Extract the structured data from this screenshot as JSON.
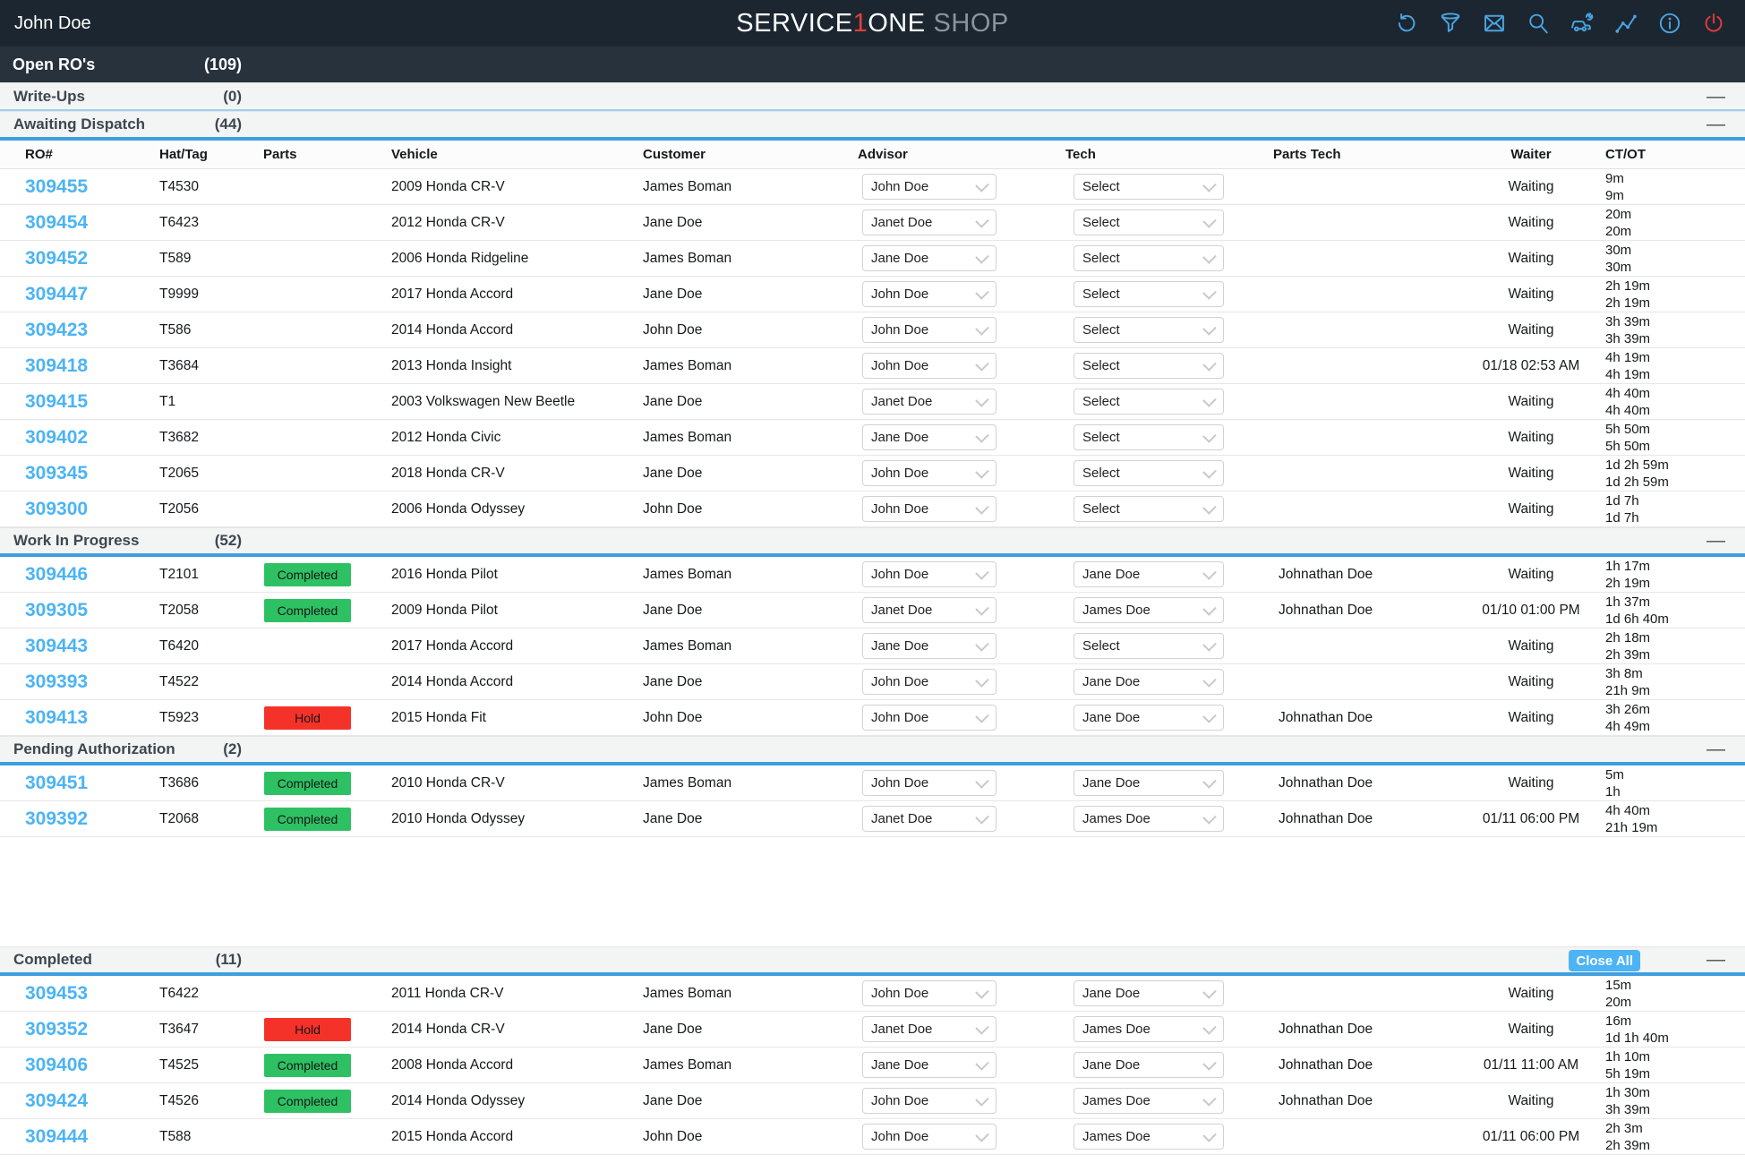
{
  "navbar": {
    "user": "John Doe",
    "logo": {
      "service": "SERVICE",
      "one_accent": "1",
      "one": "ONE",
      "shop": "SHOP"
    },
    "icons": [
      {
        "name": "refresh-icon"
      },
      {
        "name": "filter-icon"
      },
      {
        "name": "mail-icon"
      },
      {
        "name": "search-icon"
      },
      {
        "name": "car-service-icon"
      },
      {
        "name": "activity-icon"
      },
      {
        "name": "info-icon"
      },
      {
        "name": "power-icon"
      }
    ]
  },
  "summary": {
    "title": "Open RO's",
    "count": "(109)"
  },
  "columns": [
    "RO#",
    "Hat/Tag",
    "Parts",
    "Vehicle",
    "Customer",
    "Advisor",
    "Tech",
    "Parts Tech",
    "Waiter",
    "CT/OT"
  ],
  "colors": {
    "accent_blue": "#3e9edf",
    "link_blue": "#4cb4f4",
    "completed_green": "#2ec164",
    "hold_red": "#f5322a",
    "navbar_dark": "#1c2630"
  },
  "sections": [
    {
      "name": "Write-Ups",
      "count": "(0)",
      "collapsed": true,
      "rows": []
    },
    {
      "name": "Awaiting Dispatch",
      "count": "(44)",
      "has_columns": true,
      "rows": [
        {
          "ro": "309455",
          "hat": "T4530",
          "parts": "",
          "vehicle": "2009 Honda CR-V",
          "customer": "James Boman",
          "advisor": "John Doe",
          "tech": "Select",
          "parts_tech": "",
          "waiter": "Waiting",
          "ct": "9m",
          "ot": "9m"
        },
        {
          "ro": "309454",
          "hat": "T6423",
          "parts": "",
          "vehicle": "2012 Honda CR-V",
          "customer": "Jane Doe",
          "advisor": "Janet Doe",
          "tech": "Select",
          "parts_tech": "",
          "waiter": "Waiting",
          "ct": "20m",
          "ot": "20m"
        },
        {
          "ro": "309452",
          "hat": "T589",
          "parts": "",
          "vehicle": "2006 Honda Ridgeline",
          "customer": "James Boman",
          "advisor": "Jane Doe",
          "tech": "Select",
          "parts_tech": "",
          "waiter": "Waiting",
          "ct": "30m",
          "ot": "30m"
        },
        {
          "ro": "309447",
          "hat": "T9999",
          "parts": "",
          "vehicle": "2017 Honda Accord",
          "customer": "Jane Doe",
          "advisor": "John Doe",
          "tech": "Select",
          "parts_tech": "",
          "waiter": "Waiting",
          "ct": "2h 19m",
          "ot": "2h 19m"
        },
        {
          "ro": "309423",
          "hat": "T586",
          "parts": "",
          "vehicle": "2014 Honda Accord",
          "customer": "John Doe",
          "advisor": "John Doe",
          "tech": "Select",
          "parts_tech": "",
          "waiter": "Waiting",
          "ct": "3h 39m",
          "ot": "3h 39m"
        },
        {
          "ro": "309418",
          "hat": "T3684",
          "parts": "",
          "vehicle": "2013 Honda Insight",
          "customer": "James Boman",
          "advisor": "John Doe",
          "tech": "Select",
          "parts_tech": "",
          "waiter": "01/18 02:53 AM",
          "ct": "4h 19m",
          "ot": "4h 19m"
        },
        {
          "ro": "309415",
          "hat": "T1",
          "parts": "",
          "vehicle": "2003 Volkswagen New Beetle",
          "customer": "Jane Doe",
          "advisor": "Janet Doe",
          "tech": "Select",
          "parts_tech": "",
          "waiter": "Waiting",
          "ct": "4h 40m",
          "ot": "4h 40m"
        },
        {
          "ro": "309402",
          "hat": "T3682",
          "parts": "",
          "vehicle": "2012 Honda Civic",
          "customer": "James Boman",
          "advisor": "Jane Doe",
          "tech": "Select",
          "parts_tech": "",
          "waiter": "Waiting",
          "ct": "5h 50m",
          "ot": "5h 50m"
        },
        {
          "ro": "309345",
          "hat": "T2065",
          "parts": "",
          "vehicle": "2018 Honda CR-V",
          "customer": "Jane Doe",
          "advisor": "John Doe",
          "tech": "Select",
          "parts_tech": "",
          "waiter": "Waiting",
          "ct": "1d 2h 59m",
          "ot": "1d 2h 59m"
        },
        {
          "ro": "309300",
          "hat": "T2056",
          "parts": "",
          "vehicle": "2006 Honda Odyssey",
          "customer": "John Doe",
          "advisor": "John Doe",
          "tech": "Select",
          "parts_tech": "",
          "waiter": "Waiting",
          "ct": "1d 7h",
          "ot": "1d 7h"
        }
      ]
    },
    {
      "name": "Work In Progress",
      "count": "(52)",
      "rows": [
        {
          "ro": "309446",
          "hat": "T2101",
          "parts": "Completed",
          "vehicle": "2016 Honda Pilot",
          "customer": "James Boman",
          "advisor": "John Doe",
          "tech": "Jane Doe",
          "parts_tech": "Johnathan Doe",
          "waiter": "Waiting",
          "ct": "1h 17m",
          "ot": "2h 19m"
        },
        {
          "ro": "309305",
          "hat": "T2058",
          "parts": "Completed",
          "vehicle": "2009 Honda Pilot",
          "customer": "Jane Doe",
          "advisor": "Janet Doe",
          "tech": "James Doe",
          "parts_tech": "Johnathan Doe",
          "waiter": "01/10 01:00 PM",
          "ct": "1h 37m",
          "ot": "1d 6h 40m"
        },
        {
          "ro": "309443",
          "hat": "T6420",
          "parts": "",
          "vehicle": "2017 Honda Accord",
          "customer": "James Boman",
          "advisor": "Jane Doe",
          "tech": "Select",
          "parts_tech": "",
          "waiter": "Waiting",
          "ct": "2h 18m",
          "ot": "2h 39m"
        },
        {
          "ro": "309393",
          "hat": "T4522",
          "parts": "",
          "vehicle": "2014 Honda Accord",
          "customer": "Jane Doe",
          "advisor": "John Doe",
          "tech": "Jane Doe",
          "parts_tech": "",
          "waiter": "Waiting",
          "ct": "3h 8m",
          "ot": "21h 9m"
        },
        {
          "ro": "309413",
          "hat": "T5923",
          "parts": "Hold",
          "vehicle": "2015 Honda Fit",
          "customer": "John Doe",
          "advisor": "John Doe",
          "tech": "Jane Doe",
          "parts_tech": "Johnathan Doe",
          "waiter": "Waiting",
          "ct": "3h 26m",
          "ot": "4h 49m"
        }
      ]
    },
    {
      "name": "Pending Authorization",
      "count": "(2)",
      "gap_after": true,
      "rows": [
        {
          "ro": "309451",
          "hat": "T3686",
          "parts": "Completed",
          "vehicle": "2010 Honda CR-V",
          "customer": "James Boman",
          "advisor": "John Doe",
          "tech": "Jane Doe",
          "parts_tech": "Johnathan Doe",
          "waiter": "Waiting",
          "ct": "5m",
          "ot": "1h"
        },
        {
          "ro": "309392",
          "hat": "T2068",
          "parts": "Completed",
          "vehicle": "2010 Honda Odyssey",
          "customer": "Jane Doe",
          "advisor": "Janet Doe",
          "tech": "James Doe",
          "parts_tech": "Johnathan Doe",
          "waiter": "01/11 06:00 PM",
          "ct": "4h 40m",
          "ot": "21h 19m"
        }
      ]
    },
    {
      "name": "Completed",
      "count": "(11)",
      "close_all_label": "Close All",
      "rows": [
        {
          "ro": "309453",
          "hat": "T6422",
          "parts": "",
          "vehicle": "2011 Honda CR-V",
          "customer": "James Boman",
          "advisor": "John Doe",
          "tech": "Jane Doe",
          "parts_tech": "",
          "waiter": "Waiting",
          "ct": "15m",
          "ot": "20m"
        },
        {
          "ro": "309352",
          "hat": "T3647",
          "parts": "Hold",
          "vehicle": "2014 Honda CR-V",
          "customer": "Jane Doe",
          "advisor": "Janet Doe",
          "tech": "James Doe",
          "parts_tech": "Johnathan Doe",
          "waiter": "Waiting",
          "ct": "16m",
          "ot": "1d 1h 40m"
        },
        {
          "ro": "309406",
          "hat": "T4525",
          "parts": "Completed",
          "vehicle": "2008 Honda Accord",
          "customer": "James Boman",
          "advisor": "Jane Doe",
          "tech": "Jane Doe",
          "parts_tech": "Johnathan Doe",
          "waiter": "01/11 11:00 AM",
          "ct": "1h 10m",
          "ot": "5h 19m"
        },
        {
          "ro": "309424",
          "hat": "T4526",
          "parts": "Completed",
          "vehicle": "2014 Honda Odyssey",
          "customer": "Jane Doe",
          "advisor": "John Doe",
          "tech": "James Doe",
          "parts_tech": "Johnathan Doe",
          "waiter": "Waiting",
          "ct": "1h 30m",
          "ot": "3h 39m"
        },
        {
          "ro": "309444",
          "hat": "T588",
          "parts": "",
          "vehicle": "2015 Honda Accord",
          "customer": "John Doe",
          "advisor": "John Doe",
          "tech": "James Doe",
          "parts_tech": "",
          "waiter": "01/11 06:00 PM",
          "ct": "2h 3m",
          "ot": "2h 39m"
        }
      ]
    }
  ]
}
